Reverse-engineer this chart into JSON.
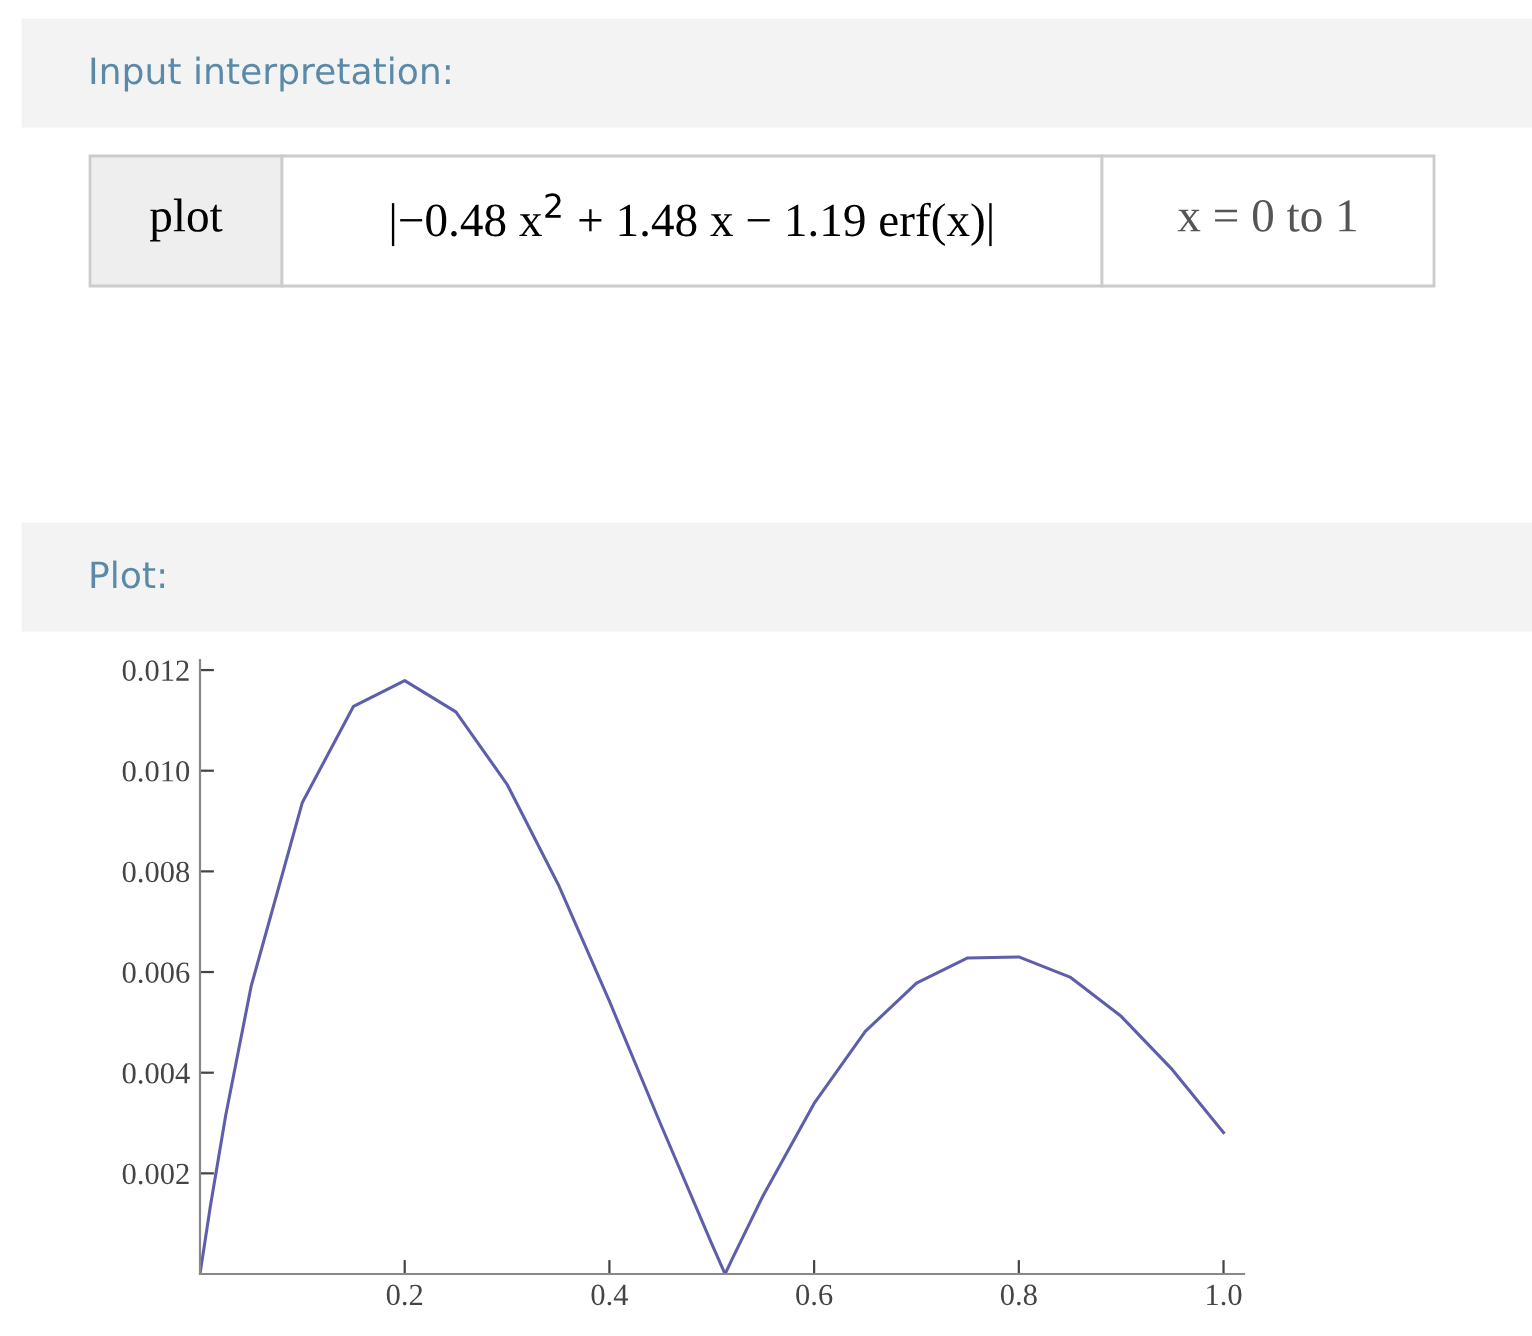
{
  "chart_data": {
    "type": "line",
    "title": "Plot:",
    "annotations": [
      "Input interpretation:",
      "plot",
      "|−0.48 x$^{2}$ + 1.48 x − 1.19 erf(x)|",
      "x = 0 to 1"
    ],
    "x": [
      0,
      0.01,
      0.025,
      0.05,
      0.1,
      0.15,
      0.2,
      0.25,
      0.3,
      0.35,
      0.4,
      0.45,
      0.5,
      0.513,
      0.52,
      0.55,
      0.6,
      0.65,
      0.7,
      0.75,
      0.8,
      0.85,
      0.9,
      0.95,
      1.0
    ],
    "series": [
      {
        "color": "#5e5eaa",
        "values": [
          0,
          0.00133,
          0.00314,
          0.00572,
          0.00937,
          0.01128,
          0.01179,
          0.01117,
          0.00973,
          0.00774,
          0.00542,
          0.00298,
          0.0006,
          0,
          0.0003,
          0.00155,
          0.00339,
          0.00482,
          0.00578,
          0.00628,
          0.0063,
          0.0059,
          0.00512,
          0.00406,
          0.00281
        ]
      }
    ],
    "xlim": [
      0,
      1.02
    ],
    "ylim": [
      0,
      0.0122
    ],
    "xticks": [
      0.2,
      0.4,
      0.6,
      0.8,
      {
        "value": 1.0,
        "label": "1.0"
      }
    ],
    "yticks": [
      0.002,
      0.004,
      0.006,
      0.008,
      {
        "value": 0.01,
        "label": "0.010"
      },
      0.012
    ],
    "grid": false,
    "legend": false,
    "marker": "none",
    "line_style": "solid"
  }
}
